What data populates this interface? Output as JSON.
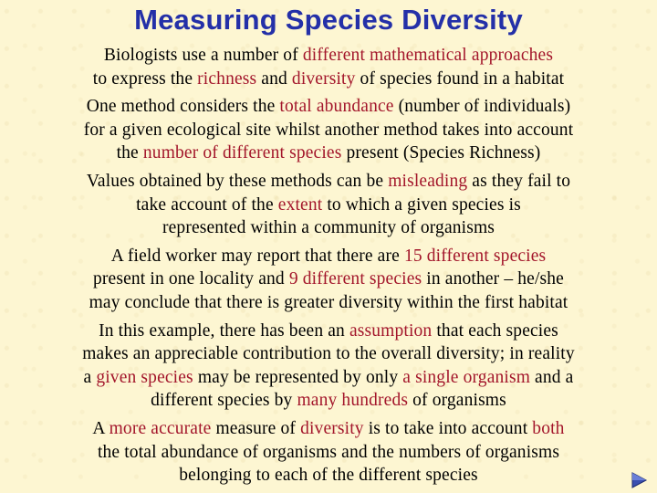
{
  "title": "Measuring Species Diversity",
  "highlight_color": "#a3162b",
  "title_color": "#2430a8",
  "paragraphs": [
    [
      [
        "Biologists use a number of ",
        {
          "t": "different mathematical approaches"
        }
      ],
      [
        "to express the ",
        {
          "t": "richness"
        },
        " and ",
        {
          "t": "diversity"
        },
        " of species found in a habitat"
      ]
    ],
    [
      [
        "One method considers the ",
        {
          "t": "total abundance"
        },
        " (number of individuals)"
      ],
      [
        "for a given ecological site whilst another method takes into account"
      ],
      [
        "the ",
        {
          "t": "number of different species"
        },
        " present (Species Richness)"
      ]
    ],
    [
      [
        "Values obtained by these methods can be ",
        {
          "t": "misleading"
        },
        " as they fail to"
      ],
      [
        "take account of the ",
        {
          "t": "extent"
        },
        " to which a given species is"
      ],
      [
        "represented within a community of organisms"
      ]
    ],
    [
      [
        "A field worker may report that there are ",
        {
          "t": "15 different species"
        }
      ],
      [
        "present in one locality and ",
        {
          "t": "9 different species"
        },
        " in another – he/she"
      ],
      [
        "may conclude that there is greater diversity within the first habitat"
      ]
    ],
    [
      [
        "In this example, there has been an ",
        {
          "t": "assumption"
        },
        " that each species"
      ],
      [
        "makes an appreciable contribution to the overall diversity; in reality"
      ],
      [
        "a ",
        {
          "t": "given species"
        },
        " may be represented by only ",
        {
          "t": "a single organism"
        },
        " and a"
      ],
      [
        "different species by ",
        {
          "t": "many hundreds"
        },
        " of organisms"
      ]
    ],
    [
      [
        "A ",
        {
          "t": "more accurate"
        },
        " measure of ",
        {
          "t": "diversity"
        },
        " is to take into account ",
        {
          "t": "both"
        }
      ],
      [
        "the total abundance of organisms and the numbers of organisms"
      ],
      [
        "belonging to each of the different species"
      ]
    ]
  ],
  "nav": {
    "next_icon": "triangle-right"
  }
}
